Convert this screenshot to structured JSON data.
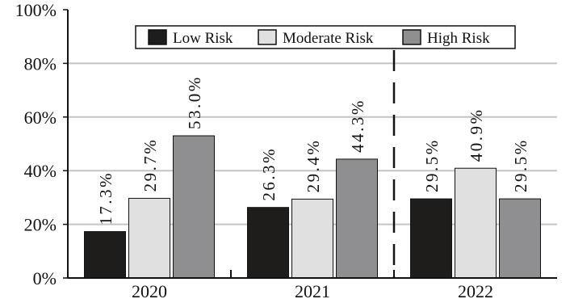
{
  "chart_data": {
    "type": "bar",
    "categories": [
      "2020",
      "2021",
      "2022"
    ],
    "series": [
      {
        "name": "Low Risk",
        "color": "#1f1c1c",
        "values": [
          17.3,
          26.3,
          29.5
        ],
        "labels": [
          "17.3%",
          "26.3%",
          "29.5%"
        ]
      },
      {
        "name": "Moderate Risk",
        "color": "#e0e0e0",
        "values": [
          29.7,
          29.4,
          40.9
        ],
        "labels": [
          "29.7%",
          "29.4%",
          "40.9%"
        ]
      },
      {
        "name": "High Risk",
        "color": "#8f8f91",
        "values": [
          53.0,
          44.3,
          29.5
        ],
        "labels": [
          "53.0%",
          "44.3%",
          "29.5%"
        ]
      }
    ],
    "ylim": [
      0,
      100
    ],
    "yticks": [
      "0%",
      "20%",
      "40%",
      "60%",
      "80%",
      "100%"
    ],
    "grid": true,
    "legend_position": "top",
    "title": "",
    "xlabel": "",
    "ylabel": ""
  }
}
